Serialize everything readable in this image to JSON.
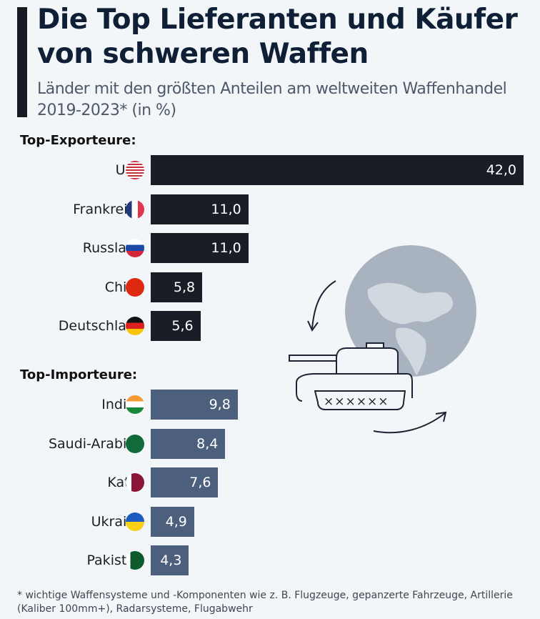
{
  "header": {
    "title": "Die Top Lieferanten und Käufer von schweren Waffen",
    "subtitle": "Länder mit den größten Anteilen am weltweiten Waffenhandel 2019-2023* (in %)"
  },
  "colors": {
    "exporter_bar": "#1a1d25",
    "importer_bar": "#4c607e",
    "background": "#f3f6f9"
  },
  "chart_data": {
    "type": "bar",
    "orientation": "horizontal",
    "title": "Die Top Lieferanten und Käufer von schweren Waffen",
    "subtitle": "Länder mit den größten Anteilen am weltweiten Waffenhandel 2019-2023* (in %)",
    "unit": "%",
    "xlim": [
      0,
      42
    ],
    "grid": false,
    "groups": [
      {
        "name": "Top-Exporteure:",
        "categories": [
          "USA",
          "Frankreich",
          "Russland",
          "China",
          "Deutschland"
        ],
        "values": [
          42.0,
          11.0,
          11.0,
          5.8,
          5.6
        ],
        "labels": [
          "42,0",
          "11,0",
          "11,0",
          "5,8",
          "5,6"
        ],
        "flags": [
          "us-flag-icon",
          "fr-flag-icon",
          "ru-flag-icon",
          "cn-flag-icon",
          "de-flag-icon"
        ]
      },
      {
        "name": "Top-Importeure:",
        "categories": [
          "Indien",
          "Saudi-Arabien",
          "Katar",
          "Ukraine",
          "Pakistan"
        ],
        "values": [
          9.8,
          8.4,
          7.6,
          4.9,
          4.3
        ],
        "labels": [
          "9,8",
          "8,4",
          "7,6",
          "4,9",
          "4,3"
        ],
        "flags": [
          "in-flag-icon",
          "sa-flag-icon",
          "qa-flag-icon",
          "ua-flag-icon",
          "pk-flag-icon"
        ]
      }
    ]
  },
  "footnote": "* wichtige Waffensysteme und -Komponenten wie z. B. Flugzeuge, gepanzerte Fahrzeuge, Artillerie (Kaliber 100mm+), Radarsysteme, Flugabwehr"
}
